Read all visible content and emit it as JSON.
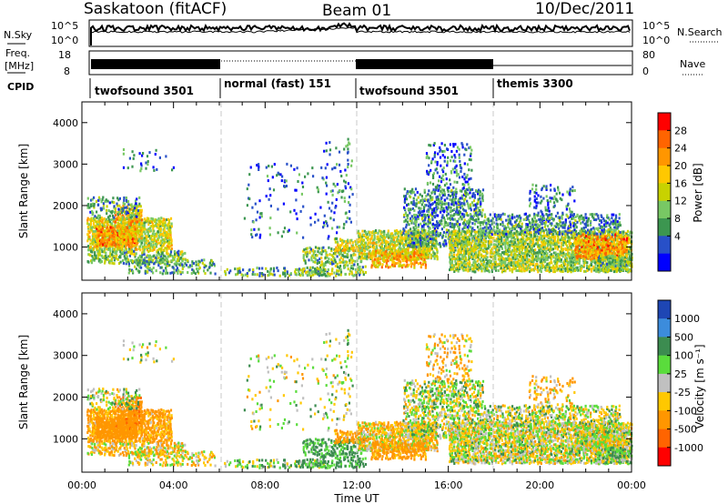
{
  "header": {
    "station": "Saskatoon (fitACF)",
    "beam": "Beam 01",
    "date": "10/Dec/2011"
  },
  "left_labels": {
    "nsky": "N.Sky",
    "freq_line1": "Freq.",
    "freq_line2": "[MHz]",
    "cpid": "CPID"
  },
  "right_labels": {
    "nsearch": "N.Search",
    "nave": "Nave"
  },
  "colors": {
    "frame": "#000000",
    "mode_divider": "#c8c8c8",
    "scatter_gray": "#c0c0c0"
  },
  "chart_data": [
    {
      "id": "noise",
      "type": "line",
      "series": [
        {
          "name": "N.Sky",
          "style": "solid"
        },
        {
          "name": "N.Search",
          "style": "dotted"
        }
      ],
      "yticks_left": [
        "10^5",
        "10^0"
      ],
      "yticks_right": [
        "10^5",
        "10^0"
      ]
    },
    {
      "id": "freq_nave",
      "type": "line",
      "series": [
        {
          "name": "Freq.",
          "style": "solid"
        },
        {
          "name": "Nave",
          "style": "dotted"
        }
      ],
      "yticks_left": [
        "18",
        "8"
      ],
      "yticks_right": [
        "80",
        "0"
      ]
    },
    {
      "id": "cpid",
      "type": "table",
      "modes": [
        {
          "label": "twofsound 3501",
          "start_h": 0
        },
        {
          "label": "normal (fast) 151",
          "start_h": 6
        },
        {
          "label": "twofsound 3501",
          "start_h": 12
        },
        {
          "label": "themis 3300",
          "start_h": 18
        }
      ]
    },
    {
      "id": "power",
      "type": "heatmap",
      "ylabel": "Slant Range [km]",
      "ylim": [
        200,
        4500
      ],
      "yticks": [
        1000,
        2000,
        3000,
        4000
      ],
      "xlim": [
        0,
        24
      ],
      "colorbar": {
        "label": "Power [dB]",
        "ticks": [
          "28",
          "24",
          "20",
          "16",
          "12",
          "8",
          "4"
        ],
        "colors": [
          "#ff0000",
          "#ff6400",
          "#ff9600",
          "#ffc800",
          "#c8d200",
          "#78c864",
          "#3c9650",
          "#2850c8",
          "#0000ff"
        ]
      }
    },
    {
      "id": "velocity",
      "type": "heatmap",
      "ylabel": "Slant Range [km]",
      "xlabel": "Time UT",
      "ylim": [
        200,
        4500
      ],
      "yticks": [
        1000,
        2000,
        3000,
        4000
      ],
      "xlim": [
        0,
        24
      ],
      "xticks": [
        "00:00",
        "04:00",
        "08:00",
        "12:00",
        "16:00",
        "20:00",
        "00:00"
      ],
      "colorbar": {
        "label": "Velocity [m s⁻¹]",
        "ticks": [
          "1000",
          "500",
          "100",
          "25",
          "-25",
          "-100",
          "-500",
          "-1000"
        ],
        "colors": [
          "#1e46b4",
          "#3c8cdc",
          "#3c8c50",
          "#5adc3c",
          "#c0c0c0",
          "#ffc800",
          "#ff9600",
          "#ff6400",
          "#ff0000"
        ]
      }
    }
  ]
}
